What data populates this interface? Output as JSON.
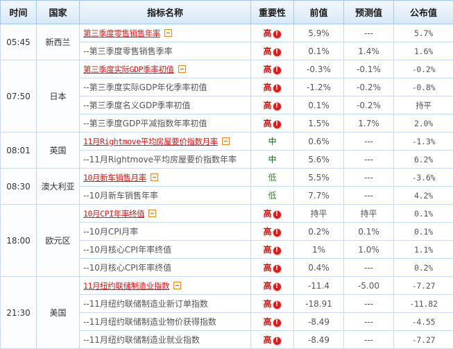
{
  "headers": {
    "time": "时间",
    "country": "国家",
    "indicator": "指标名称",
    "importance": "重要性",
    "previous": "前值",
    "forecast": "预测值",
    "published": "公布值"
  },
  "icons": {
    "alert_glyph": "!",
    "alert_color": "#d71e1e",
    "expand_icon": "minus-box-icon"
  },
  "groups": [
    {
      "time": "05:45",
      "country": "新西兰",
      "rows": [
        {
          "name": "第三季度零售销售年率",
          "main": true,
          "importance": "高",
          "level": "hi",
          "previous": "5.9%",
          "forecast": "---",
          "published": "5.7%"
        },
        {
          "name": "--第三季度零售销售季率",
          "main": false,
          "importance": "高",
          "level": "hi",
          "previous": "0.1%",
          "forecast": "1.4%",
          "published": "1.6%"
        }
      ]
    },
    {
      "time": "07:50",
      "country": "日本",
      "rows": [
        {
          "name": "第三季度实际GDP季率初值",
          "main": true,
          "importance": "高",
          "level": "hi",
          "previous": "-0.3%",
          "forecast": "-0.1%",
          "published": "-0.2%"
        },
        {
          "name": "--第三季度实际GDP年化季率初值",
          "main": false,
          "importance": "高",
          "level": "hi",
          "previous": "-1.2%",
          "forecast": "-0.2%",
          "published": "-0.8%"
        },
        {
          "name": "--第三季度名义GDP季率初值",
          "main": false,
          "importance": "高",
          "level": "hi",
          "previous": "0.1%",
          "forecast": "-0.2%",
          "published": "持平"
        },
        {
          "name": "--第三季度GDP平减指数年率初值",
          "main": false,
          "importance": "高",
          "level": "hi",
          "previous": "1.5%",
          "forecast": "1.7%",
          "published": "2.0%"
        }
      ]
    },
    {
      "time": "08:01",
      "country": "英国",
      "rows": [
        {
          "name": "11月Rightmove平均房屋要价指数月率",
          "main": true,
          "importance": "中",
          "level": "mid",
          "previous": "0.6%",
          "forecast": "---",
          "published": "-1.3%"
        },
        {
          "name": "--11月Rightmove平均房屋要价指数年率",
          "main": false,
          "importance": "中",
          "level": "mid",
          "previous": "5.6%",
          "forecast": "---",
          "published": "6.2%"
        }
      ]
    },
    {
      "time": "08:30",
      "country": "澳大利亚",
      "rows": [
        {
          "name": "10月新车销售月率",
          "main": true,
          "importance": "低",
          "level": "lo",
          "previous": "5.5%",
          "forecast": "---",
          "published": "-3.6%"
        },
        {
          "name": "--10月新车销售年率",
          "main": false,
          "importance": "低",
          "level": "lo",
          "previous": "7.7%",
          "forecast": "---",
          "published": "4.2%"
        }
      ]
    },
    {
      "time": "18:00",
      "country": "欧元区",
      "rows": [
        {
          "name": "10月CPI年率终值",
          "main": true,
          "importance": "高",
          "level": "hi",
          "previous": "持平",
          "forecast": "持平",
          "published": "0.1%"
        },
        {
          "name": "--10月CPI月率",
          "main": false,
          "importance": "高",
          "level": "hi",
          "previous": "0.2%",
          "forecast": "0.1%",
          "published": "0.1%"
        },
        {
          "name": "--10月核心CPI年率终值",
          "main": false,
          "importance": "高",
          "level": "hi",
          "previous": "1%",
          "forecast": "1.0%",
          "published": "1.1%"
        },
        {
          "name": "--10月核心CPI年率终值",
          "main": false,
          "importance": "高",
          "level": "hi",
          "previous": "0.4%",
          "forecast": "---",
          "published": "0.2%"
        }
      ]
    },
    {
      "time": "21:30",
      "country": "美国",
      "rows": [
        {
          "name": "11月纽约联储制造业指数",
          "main": true,
          "importance": "高",
          "level": "hi",
          "previous": "-11.4",
          "forecast": "-5.00",
          "published": "-7.27"
        },
        {
          "name": "--11月纽约联储制造业新订单指数",
          "main": false,
          "importance": "高",
          "level": "hi",
          "previous": "-18.91",
          "forecast": "---",
          "published": "-11.82"
        },
        {
          "name": "--11月纽约联储制造业物价获得指数",
          "main": false,
          "importance": "高",
          "level": "hi",
          "previous": "-8.49",
          "forecast": "---",
          "published": "-4.55"
        },
        {
          "name": "--11月纽约联储制造业就业指数",
          "main": false,
          "importance": "高",
          "level": "hi",
          "previous": "-8.49",
          "forecast": "---",
          "published": "-7.27"
        }
      ]
    }
  ]
}
